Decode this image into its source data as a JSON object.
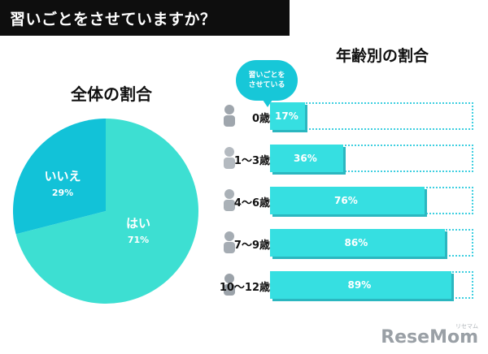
{
  "banner": {
    "text": "習いごとをさせていますか？"
  },
  "pie_section": {
    "title": "全体の割合"
  },
  "bars_section": {
    "title": "年齢別の割合",
    "bubble_line1": "習いごとを",
    "bubble_line2": "させている"
  },
  "colors": {
    "pie_yes": "#3ddfd2",
    "pie_no": "#12c2d8",
    "bar": "#36dfe1",
    "banner": "#0e0e0e"
  },
  "chart_data": [
    {
      "type": "pie",
      "title": "全体の割合",
      "slices": [
        {
          "label": "はい",
          "value": 71,
          "display": "71%",
          "color": "#3ddfd2"
        },
        {
          "label": "いいえ",
          "value": 29,
          "display": "29%",
          "color": "#12c2d8"
        }
      ]
    },
    {
      "type": "bar",
      "orientation": "horizontal",
      "title": "年齢別の割合",
      "categories": [
        "0歳",
        "1〜3歳",
        "4〜6歳",
        "7〜9歳",
        "10〜12歳"
      ],
      "values": [
        17,
        36,
        76,
        86,
        89
      ],
      "value_labels": [
        "17%",
        "36%",
        "76%",
        "86%",
        "89%"
      ],
      "xlim": [
        0,
        100
      ]
    }
  ],
  "logo": {
    "text": "ReseMom",
    "sub": "リセマム"
  }
}
